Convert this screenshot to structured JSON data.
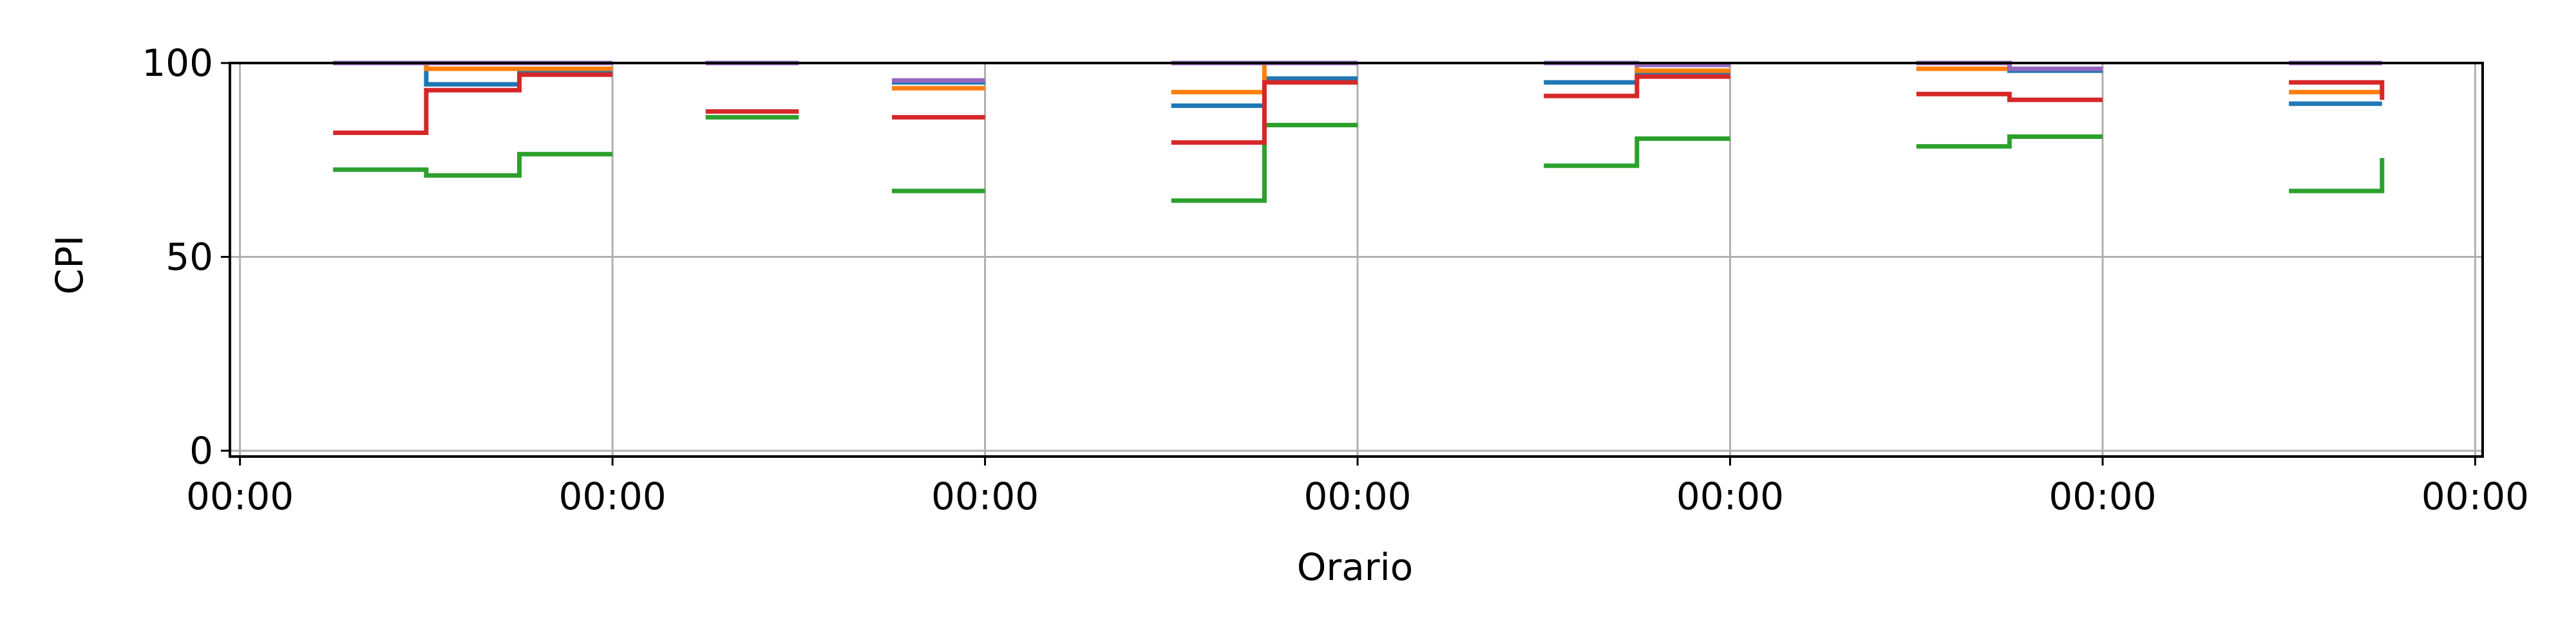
{
  "chart_data": {
    "type": "line",
    "step": true,
    "xlabel": "Orario",
    "ylabel": "CPI",
    "ylim": [
      0,
      100
    ],
    "yticks": [
      0,
      50,
      100
    ],
    "xlim": [
      -0.027,
      6.02
    ],
    "xticks": [
      0,
      1,
      2,
      3,
      4,
      5,
      6
    ],
    "xtick_labels": [
      "00:00",
      "00:00",
      "00:00",
      "00:00",
      "00:00",
      "00:00",
      "00:00"
    ],
    "grid": true,
    "series": [
      {
        "color": "#1f77b4",
        "segments": [
          {
            "x": [
              0.25,
              0.5,
              0.75,
              1.0
            ],
            "y": [
              100,
              94.5,
              97.5,
              97.5
            ]
          },
          {
            "x": [
              1.25,
              1.5
            ],
            "y": [
              100,
              100
            ]
          },
          {
            "x": [
              1.75,
              2.0
            ],
            "y": [
              95,
              95
            ]
          },
          {
            "x": [
              2.5,
              2.75,
              3.0
            ],
            "y": [
              89,
              96,
              96
            ]
          },
          {
            "x": [
              3.5,
              3.75,
              4.0
            ],
            "y": [
              95,
              97.5,
              97.5
            ]
          },
          {
            "x": [
              4.5,
              4.75,
              5.0
            ],
            "y": [
              100,
              98,
              98
            ]
          },
          {
            "x": [
              5.5,
              5.75
            ],
            "y": [
              89.5,
              89.5
            ]
          }
        ]
      },
      {
        "color": "#ff7f0e",
        "segments": [
          {
            "x": [
              0.25,
              0.5,
              0.75,
              1.0
            ],
            "y": [
              100,
              98.5,
              98.5,
              98.5
            ]
          },
          {
            "x": [
              1.25,
              1.5
            ],
            "y": [
              100,
              100
            ]
          },
          {
            "x": [
              1.75,
              2.0
            ],
            "y": [
              93.5,
              93.5
            ]
          },
          {
            "x": [
              2.5,
              2.75,
              3.0
            ],
            "y": [
              92.5,
              100,
              100
            ]
          },
          {
            "x": [
              3.5,
              3.75,
              4.0
            ],
            "y": [
              100,
              98,
              98
            ]
          },
          {
            "x": [
              4.5,
              4.75,
              5.0
            ],
            "y": [
              98.5,
              98.5,
              98.5
            ]
          },
          {
            "x": [
              5.5,
              5.75
            ],
            "y": [
              92.5,
              92.5
            ]
          }
        ]
      },
      {
        "color": "#2ca02c",
        "segments": [
          {
            "x": [
              0.25,
              0.5,
              0.75,
              1.0
            ],
            "y": [
              72.5,
              71,
              76.5,
              76.5
            ]
          },
          {
            "x": [
              1.25,
              1.5
            ],
            "y": [
              86,
              86
            ]
          },
          {
            "x": [
              1.75,
              2.0
            ],
            "y": [
              67,
              67
            ]
          },
          {
            "x": [
              2.5,
              2.75,
              3.0
            ],
            "y": [
              64.5,
              84,
              84
            ]
          },
          {
            "x": [
              3.5,
              3.75,
              4.0
            ],
            "y": [
              73.5,
              80.5,
              80.5
            ]
          },
          {
            "x": [
              4.5,
              4.75,
              5.0
            ],
            "y": [
              78.5,
              81,
              81
            ]
          },
          {
            "x": [
              5.5,
              5.75,
              5.75
            ],
            "y": [
              67,
              67,
              75.5
            ]
          }
        ]
      },
      {
        "color": "#d62728",
        "segments": [
          {
            "x": [
              0.25,
              0.5,
              0.75,
              1.0
            ],
            "y": [
              82,
              93,
              97,
              97
            ]
          },
          {
            "x": [
              1.25,
              1.5
            ],
            "y": [
              87.5,
              87.5
            ]
          },
          {
            "x": [
              1.75,
              2.0
            ],
            "y": [
              86,
              86
            ]
          },
          {
            "x": [
              2.5,
              2.75,
              3.0
            ],
            "y": [
              79.5,
              95,
              95
            ]
          },
          {
            "x": [
              3.5,
              3.75,
              4.0
            ],
            "y": [
              91.5,
              96.5,
              96.5
            ]
          },
          {
            "x": [
              4.5,
              4.75,
              5.0
            ],
            "y": [
              92,
              90.5,
              90.5
            ]
          },
          {
            "x": [
              5.5,
              5.75,
              5.75
            ],
            "y": [
              95,
              95,
              90.5
            ]
          }
        ]
      },
      {
        "color": "#9467bd",
        "segments": [
          {
            "x": [
              0.25,
              0.5,
              0.75,
              1.0
            ],
            "y": [
              100,
              100,
              100,
              100
            ]
          },
          {
            "x": [
              1.25,
              1.5
            ],
            "y": [
              100,
              100
            ]
          },
          {
            "x": [
              1.75,
              2.0
            ],
            "y": [
              95.5,
              95.5
            ]
          },
          {
            "x": [
              2.5,
              2.75,
              3.0
            ],
            "y": [
              100,
              100,
              100
            ]
          },
          {
            "x": [
              3.5,
              3.75,
              4.0
            ],
            "y": [
              100,
              99.5,
              99.5
            ]
          },
          {
            "x": [
              4.5,
              4.75,
              5.0
            ],
            "y": [
              100,
              98.5,
              98.5
            ]
          },
          {
            "x": [
              5.5,
              5.75
            ],
            "y": [
              100,
              100
            ]
          }
        ]
      }
    ]
  }
}
